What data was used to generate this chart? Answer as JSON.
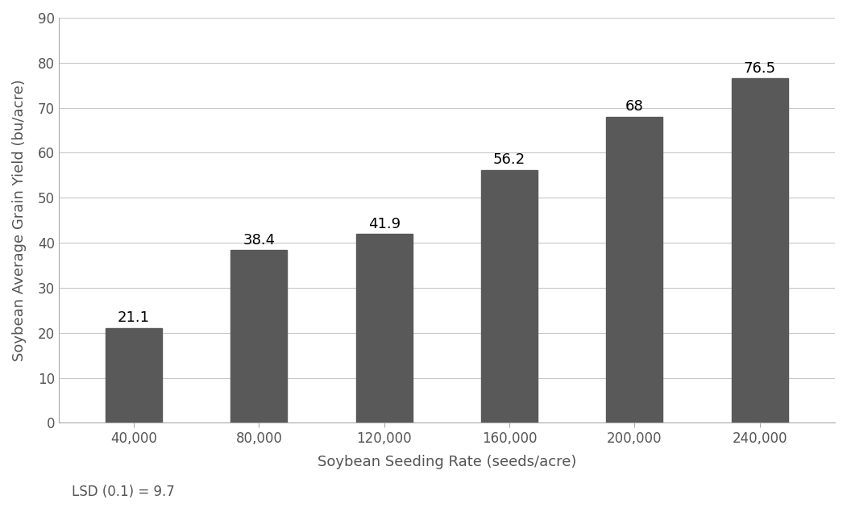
{
  "categories": [
    "40,000",
    "80,000",
    "120,000",
    "160,000",
    "200,000",
    "240,000"
  ],
  "values": [
    21.1,
    38.4,
    41.9,
    56.2,
    68.0,
    76.5
  ],
  "bar_color": "#595959",
  "ylabel": "Soybean Average Grain Yield (bu/acre)",
  "xlabel": "Soybean Seeding Rate (seeds/acre)",
  "ylim": [
    0,
    90
  ],
  "yticks": [
    0,
    10,
    20,
    30,
    40,
    50,
    60,
    70,
    80,
    90
  ],
  "lsd_label": "LSD (0.1) = 9.7",
  "label_fontsize": 13,
  "tick_fontsize": 12,
  "annotation_fontsize": 13,
  "lsd_fontsize": 12,
  "bar_width": 0.45,
  "background_color": "#ffffff",
  "grid_color": "#c8c8c8"
}
